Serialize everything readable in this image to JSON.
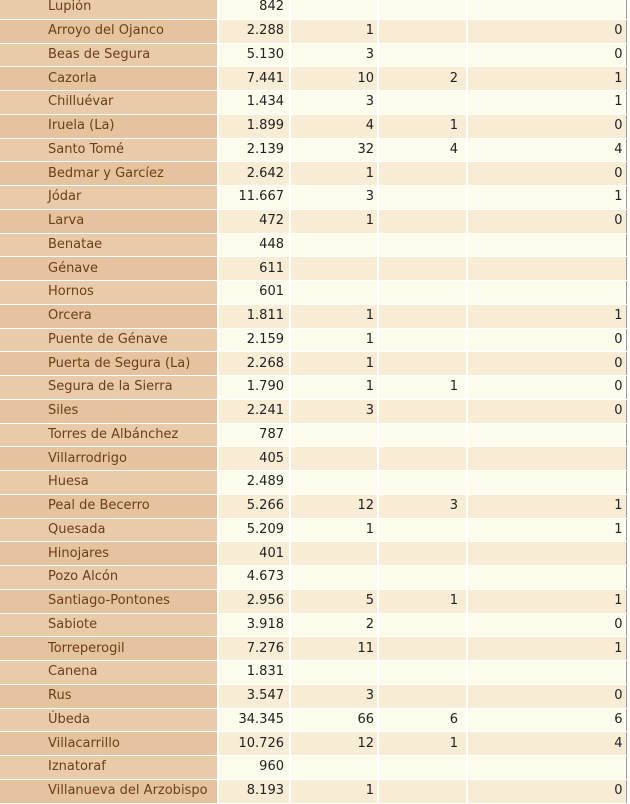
{
  "rows": [
    {
      "name": "Lupión",
      "pop": "842",
      "c3": "",
      "c4": "",
      "c5": ""
    },
    {
      "name": "Arroyo del Ojanco",
      "pop": "2.288",
      "c3": "1",
      "c4": "",
      "c5": "0"
    },
    {
      "name": "Beas de Segura",
      "pop": "5.130",
      "c3": "3",
      "c4": "",
      "c5": "0"
    },
    {
      "name": "Cazorla",
      "pop": "7.441",
      "c3": "10",
      "c4": "2",
      "c5": "1"
    },
    {
      "name": "Chilluévar",
      "pop": "1.434",
      "c3": "3",
      "c4": "",
      "c5": "1"
    },
    {
      "name": "Iruela (La)",
      "pop": "1.899",
      "c3": "4",
      "c4": "1",
      "c5": "0"
    },
    {
      "name": "Santo Tomé",
      "pop": "2.139",
      "c3": "32",
      "c4": "4",
      "c5": "4"
    },
    {
      "name": "Bedmar y Garcíez",
      "pop": "2.642",
      "c3": "1",
      "c4": "",
      "c5": "0"
    },
    {
      "name": "Jódar",
      "pop": "11.667",
      "c3": "3",
      "c4": "",
      "c5": "1"
    },
    {
      "name": "Larva",
      "pop": "472",
      "c3": "1",
      "c4": "",
      "c5": "0"
    },
    {
      "name": "Benatae",
      "pop": "448",
      "c3": "",
      "c4": "",
      "c5": ""
    },
    {
      "name": "Génave",
      "pop": "611",
      "c3": "",
      "c4": "",
      "c5": ""
    },
    {
      "name": "Hornos",
      "pop": "601",
      "c3": "",
      "c4": "",
      "c5": ""
    },
    {
      "name": "Orcera",
      "pop": "1.811",
      "c3": "1",
      "c4": "",
      "c5": "1"
    },
    {
      "name": "Puente de Génave",
      "pop": "2.159",
      "c3": "1",
      "c4": "",
      "c5": "0"
    },
    {
      "name": "Puerta de Segura (La)",
      "pop": "2.268",
      "c3": "1",
      "c4": "",
      "c5": "0"
    },
    {
      "name": "Segura de la Sierra",
      "pop": "1.790",
      "c3": "1",
      "c4": "1",
      "c5": "0"
    },
    {
      "name": "Siles",
      "pop": "2.241",
      "c3": "3",
      "c4": "",
      "c5": "0"
    },
    {
      "name": "Torres de Albánchez",
      "pop": "787",
      "c3": "",
      "c4": "",
      "c5": ""
    },
    {
      "name": "Villarrodrigo",
      "pop": "405",
      "c3": "",
      "c4": "",
      "c5": ""
    },
    {
      "name": "Huesa",
      "pop": "2.489",
      "c3": "",
      "c4": "",
      "c5": ""
    },
    {
      "name": "Peal de Becerro",
      "pop": "5.266",
      "c3": "12",
      "c4": "3",
      "c5": "1"
    },
    {
      "name": "Quesada",
      "pop": "5.209",
      "c3": "1",
      "c4": "",
      "c5": "1"
    },
    {
      "name": "Hinojares",
      "pop": "401",
      "c3": "",
      "c4": "",
      "c5": ""
    },
    {
      "name": "Pozo Alcón",
      "pop": "4.673",
      "c3": "",
      "c4": "",
      "c5": ""
    },
    {
      "name": "Santiago-Pontones",
      "pop": "2.956",
      "c3": "5",
      "c4": "1",
      "c5": "1"
    },
    {
      "name": "Sabiote",
      "pop": "3.918",
      "c3": "2",
      "c4": "",
      "c5": "0"
    },
    {
      "name": "Torreperogil",
      "pop": "7.276",
      "c3": "11",
      "c4": "",
      "c5": "1"
    },
    {
      "name": "Canena",
      "pop": "1.831",
      "c3": "",
      "c4": "",
      "c5": ""
    },
    {
      "name": "Rus",
      "pop": "3.547",
      "c3": "3",
      "c4": "",
      "c5": "0"
    },
    {
      "name": "Úbeda",
      "pop": "34.345",
      "c3": "66",
      "c4": "6",
      "c5": "6"
    },
    {
      "name": "Villacarrillo",
      "pop": "10.726",
      "c3": "12",
      "c4": "1",
      "c5": "4"
    },
    {
      "name": "Iznatoraf",
      "pop": "960",
      "c3": "",
      "c4": "",
      "c5": ""
    },
    {
      "name": "Villanueva del Arzobispo",
      "pop": "8.193",
      "c3": "1",
      "c4": "",
      "c5": "0"
    }
  ]
}
